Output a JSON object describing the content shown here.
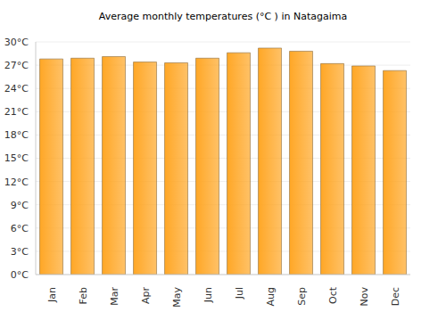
{
  "chart_data": {
    "type": "bar",
    "title": "Average monthly temperatures (°C ) in Natagaima",
    "categories": [
      "Jan",
      "Feb",
      "Mar",
      "Apr",
      "May",
      "Jun",
      "Jul",
      "Aug",
      "Sep",
      "Oct",
      "Nov",
      "Dec"
    ],
    "values": [
      27.8,
      27.9,
      28.1,
      27.4,
      27.3,
      27.9,
      28.6,
      29.2,
      28.8,
      27.2,
      26.9,
      26.3
    ],
    "color": "#ffa726",
    "ylim": [
      0,
      30
    ],
    "yticks": [
      {
        "value": 0,
        "label": "0°C"
      },
      {
        "value": 3,
        "label": "3°C"
      },
      {
        "value": 6,
        "label": "6°C"
      },
      {
        "value": 9,
        "label": "9°C"
      },
      {
        "value": 12,
        "label": "12°C"
      },
      {
        "value": 15,
        "label": "15°C"
      },
      {
        "value": 18,
        "label": "18°C"
      },
      {
        "value": 21,
        "label": "21°C"
      },
      {
        "value": 24,
        "label": "24°C"
      },
      {
        "value": 27,
        "label": "27°C"
      },
      {
        "value": 30,
        "label": "30°C"
      }
    ],
    "grid": true
  }
}
